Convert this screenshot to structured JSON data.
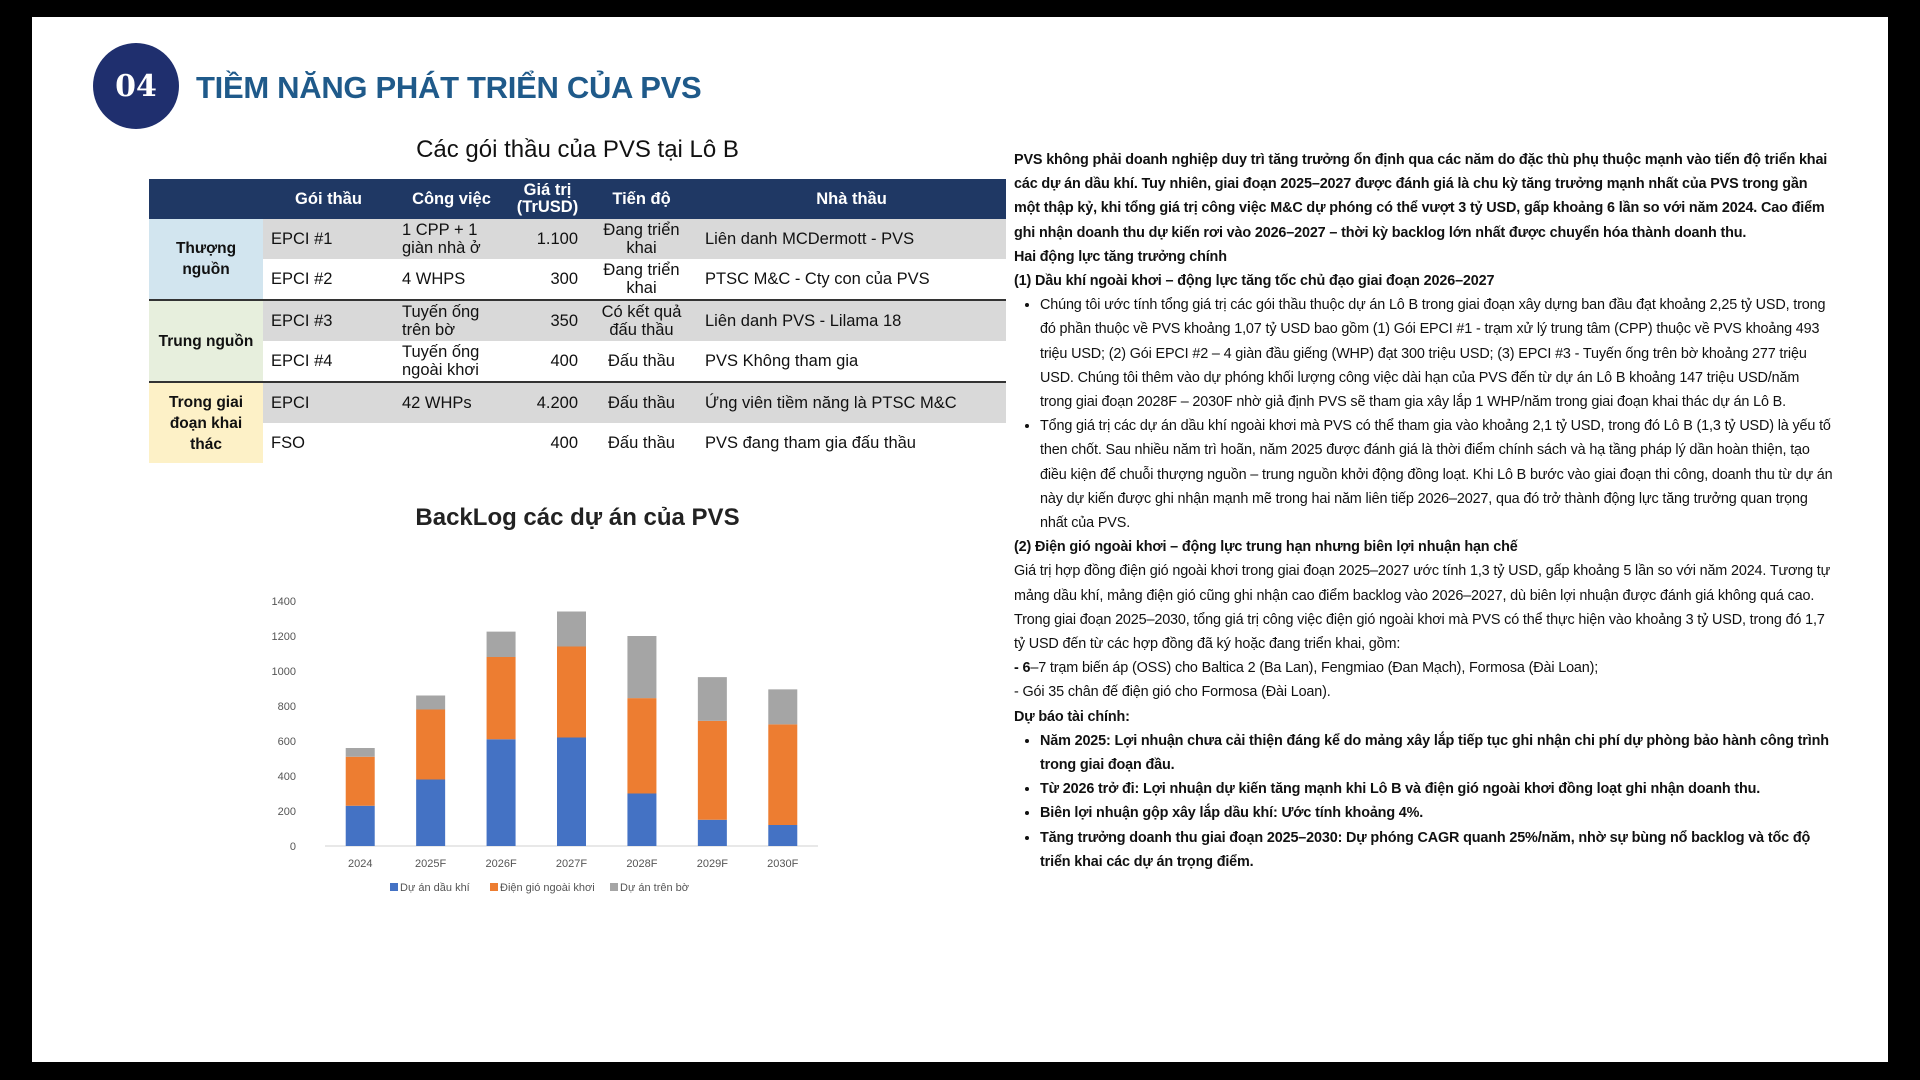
{
  "header": {
    "section_number": "04",
    "title": "TIỀM NĂNG PHÁT TRIỂN CỦA PVS"
  },
  "table": {
    "title": "Các gói thầu của PVS tại Lô B",
    "columns": [
      "",
      "Gói thầu",
      "Công việc",
      "Giá trị (TrUSD)",
      "Tiến độ",
      "Nhà thầu"
    ],
    "groups": [
      {
        "name": "Thượng nguồn",
        "color": "#d2e5ef",
        "rows": [
          [
            "EPCI #1",
            "1 CPP + 1 giàn nhà ở",
            "1.100",
            "Đang triển khai",
            "Liên danh MCDermott - PVS"
          ],
          [
            "EPCI #2",
            "4 WHPS",
            "300",
            "Đang triển khai",
            "PTSC M&C - Cty con của PVS"
          ]
        ]
      },
      {
        "name": "Trung nguồn",
        "color": "#e7efdd",
        "rows": [
          [
            "EPCI #3",
            "Tuyến ống trên bờ",
            "350",
            "Có kết quả đấu thầu",
            "Liên danh PVS - Lilama 18"
          ],
          [
            "EPCI #4",
            "Tuyến ống ngoài khơi",
            "400",
            "Đấu thầu",
            "PVS Không tham gia"
          ]
        ]
      },
      {
        "name": "Trong giai đoạn khai thác",
        "color": "#fdf1c7",
        "rows": [
          [
            "EPCI",
            "42 WHPs",
            "4.200",
            "Đấu thầu",
            "Ứng viên tiềm năng là PTSC M&C"
          ],
          [
            "FSO",
            "",
            "400",
            "Đấu thầu",
            "PVS đang tham gia đấu thầu"
          ]
        ]
      }
    ]
  },
  "chart_data": {
    "type": "bar",
    "stacked": true,
    "title": "BackLog các dự án của PVS",
    "categories": [
      "2024",
      "2025F",
      "2026F",
      "2027F",
      "2028F",
      "2029F",
      "2030F"
    ],
    "ylim": [
      0,
      1400
    ],
    "yticks": [
      0,
      200,
      400,
      600,
      800,
      1000,
      1200,
      1400
    ],
    "grid": false,
    "legend": "bottom",
    "series": [
      {
        "name": "Dự án dầu khí",
        "color": "#4472c4",
        "values": [
          230,
          380,
          610,
          620,
          300,
          150,
          120
        ]
      },
      {
        "name": "Điện gió ngoài khơi",
        "color": "#ed7d31",
        "values": [
          280,
          400,
          470,
          520,
          545,
          565,
          575
        ]
      },
      {
        "name": "Dự án trên bờ",
        "color": "#a5a5a5",
        "values": [
          50,
          80,
          145,
          200,
          355,
          250,
          200
        ]
      }
    ]
  },
  "text": {
    "intro": "PVS không phải doanh nghiệp duy trì tăng trưởng ổn định qua các năm do đặc thù phụ thuộc mạnh vào tiến độ triển khai các dự án dầu khí. Tuy nhiên, giai đoạn 2025–2027 được đánh giá là chu kỳ tăng trưởng mạnh nhất của PVS trong gần một thập kỷ, khi tổng giá trị công việc M&C dự phóng có thể vượt 3 tỷ USD, gấp khoảng 6 lần so với năm 2024. Cao điểm ghi nhận doanh thu dự kiến rơi vào 2026–2027 – thời kỳ backlog lớn nhất được chuyển hóa thành doanh thu.",
    "drivers_heading": "Hai động lực tăng trưởng chính",
    "driver1_heading": "(1) Dầu khí ngoài khơi – động lực tăng tốc chủ đạo giai đoạn 2026–2027",
    "driver1_bullets": [
      "Chúng tôi ước tính tổng giá trị các gói thầu thuộc dự án Lô B trong giai đoạn xây dựng ban đầu đạt khoảng 2,25 tỷ USD, trong đó phần thuộc về PVS khoảng 1,07 tỷ USD bao gồm (1) Gói EPCI #1 - trạm xử lý trung tâm (CPP) thuộc về PVS khoảng 493 triệu USD; (2) Gói EPCI #2 – 4 giàn đầu giếng (WHP) đạt 300 triệu USD; (3) EPCI #3 - Tuyến ống trên bờ khoảng 277 triệu USD. Chúng tôi thêm vào dự phóng khối lượng công việc dài hạn của PVS đến từ dự án Lô B khoảng 147 triệu USD/năm trong giai đoạn 2028F – 2030F nhờ giả định PVS sẽ tham gia xây lắp 1 WHP/năm trong giai đoạn khai thác dự án Lô B.",
      "Tổng giá trị các dự án dầu khí ngoài khơi mà PVS có thể tham gia vào khoảng 2,1 tỷ USD, trong đó Lô B (1,3 tỷ USD) là yếu tố then chốt. Sau nhiều năm trì hoãn, năm 2025 được đánh giá là thời điểm chính sách và hạ tầng pháp lý dần hoàn thiện, tạo điều kiện để chuỗi thượng nguồn – trung nguồn khởi động đồng loạt. Khi Lô B bước vào giai đoạn thi công, doanh thu từ dự án này dự kiến được ghi nhận mạnh mẽ trong hai năm liên tiếp 2026–2027, qua đó trở thành động lực tăng trưởng quan trọng nhất của PVS."
    ],
    "driver2_heading": "(2) Điện gió ngoài khơi – động lực trung hạn nhưng biên lợi nhuận hạn chế",
    "driver2_body": "Giá trị hợp đồng điện gió ngoài khơi trong giai đoạn 2025–2027 ước tính 1,3 tỷ USD, gấp khoảng 5 lần so với năm 2024. Tương tự mảng dầu khí, mảng điện gió cũng ghi nhận cao điểm backlog vào 2026–2027, dù biên lợi nhuận được đánh giá không quá cao. Trong giai đoạn 2025–2030, tổng giá trị công việc điện gió ngoài khơi mà PVS có thể thực hiện vào khoảng 3 tỷ USD, trong đó 1,7 tỷ USD đến từ các hợp đồng đã ký hoặc đang triển khai, gồm:",
    "driver2_item1_bold": "- 6",
    "driver2_item1": "–7 trạm biến áp (OSS) cho Baltica 2 (Ba Lan), Fengmiao (Đan Mạch), Formosa (Đài Loan);",
    "driver2_item2": "- Gói 35 chân đế điện gió cho Formosa (Đài Loan).",
    "forecast_heading": "Dự báo tài chính:",
    "forecast_bullets": [
      "Năm 2025: Lợi nhuận chưa cải thiện đáng kể do mảng xây lắp tiếp tục ghi nhận chi phí dự phòng bảo hành công trình trong giai đoạn đầu.",
      "Từ 2026 trở đi: Lợi nhuận dự kiến tăng mạnh khi Lô B và điện gió ngoài khơi đồng loạt ghi nhận doanh thu.",
      "Biên lợi nhuận gộp xây lắp dầu khí: Ước tính khoảng 4%.",
      "Tăng trưởng doanh thu giai đoạn 2025–2030: Dự phóng CAGR quanh 25%/năm, nhờ sự bùng nổ backlog và tốc độ triển khai các dự án trọng điểm."
    ]
  }
}
